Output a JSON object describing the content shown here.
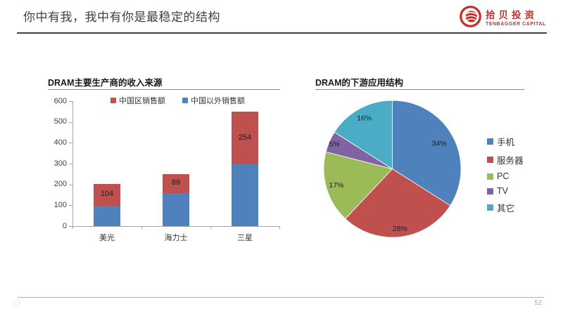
{
  "slide": {
    "title": "你中有我，我中有你是最稳定的结构",
    "page_number": "52"
  },
  "logo": {
    "name_cn": "拾贝投资",
    "name_en": "TENBAGGER CAPITAL",
    "color": "#c0332d"
  },
  "colors": {
    "blue": "#4f81bd",
    "red": "#c0504d",
    "green": "#9bbb59",
    "purple": "#8064a2",
    "teal": "#4bacc6",
    "axis": "#a6a6a6"
  },
  "chart_data": [
    {
      "type": "bar",
      "stacked": true,
      "title": "DRAM主要生产商的收入来源",
      "categories": [
        "美光",
        "海力士",
        "三星"
      ],
      "series": [
        {
          "name": "中国以外销售额",
          "color": "#4f81bd",
          "values": [
            99,
            160,
            296
          ],
          "labels": [
            "",
            "",
            ""
          ]
        },
        {
          "name": "中国区销售额",
          "color": "#c0504d",
          "values": [
            104,
            89,
            254
          ],
          "labels": [
            "104",
            "89",
            "254"
          ]
        }
      ],
      "ylim": [
        0,
        600
      ],
      "ytick_step": 100,
      "grid": false,
      "legend_position": "top"
    },
    {
      "type": "pie",
      "title": "DRAM的下游应用结构",
      "slices": [
        {
          "key": "phone",
          "label": "手机",
          "value": 34,
          "pct": "34%",
          "color": "#4f81bd"
        },
        {
          "key": "server",
          "label": "服务器",
          "value": 28,
          "pct": "28%",
          "color": "#c0504d"
        },
        {
          "key": "pc",
          "label": "PC",
          "value": 17,
          "pct": "17%",
          "color": "#9bbb59"
        },
        {
          "key": "tv",
          "label": "TV",
          "value": 5,
          "pct": "5%",
          "color": "#8064a2"
        },
        {
          "key": "other",
          "label": "其它",
          "value": 16,
          "pct": "16%",
          "color": "#4bacc6"
        }
      ],
      "start_angle_deg": 0,
      "direction": "clockwise",
      "legend_position": "right"
    }
  ]
}
